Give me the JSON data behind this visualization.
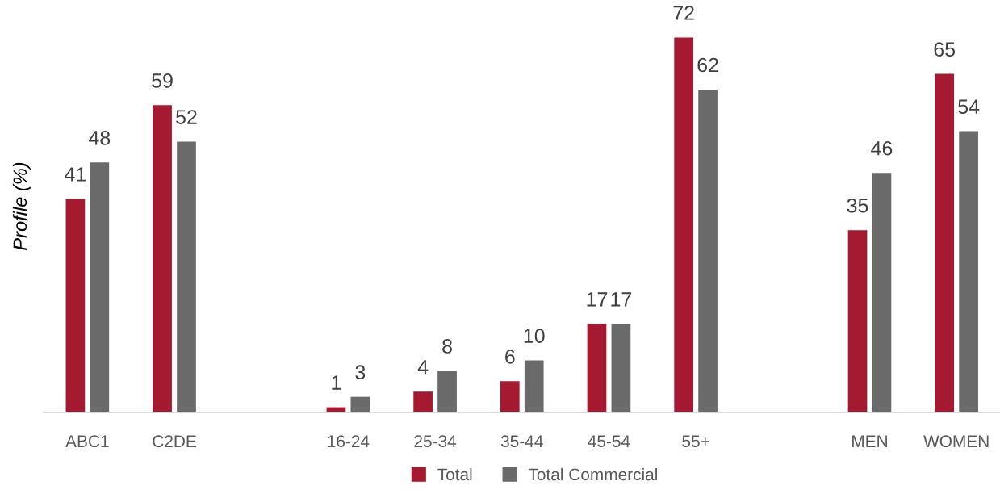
{
  "chart_data": {
    "type": "bar",
    "ylabel": "Profile (%)",
    "categories": [
      "ABC1",
      "C2DE",
      null,
      "16-24",
      "25-34",
      "35-44",
      "45-54",
      "55+",
      null,
      "MEN",
      "WOMEN"
    ],
    "series": [
      {
        "name": "Total",
        "color": "#a51931",
        "values": [
          41,
          59,
          null,
          1,
          4,
          6,
          17,
          72,
          null,
          35,
          65
        ]
      },
      {
        "name": "Total Commercial",
        "color": "#6b6a6b",
        "values": [
          48,
          52,
          null,
          3,
          8,
          10,
          17,
          62,
          null,
          46,
          54
        ]
      }
    ],
    "data_labels": true,
    "legend": "bottom",
    "grid": false,
    "tick_labels": "x"
  }
}
